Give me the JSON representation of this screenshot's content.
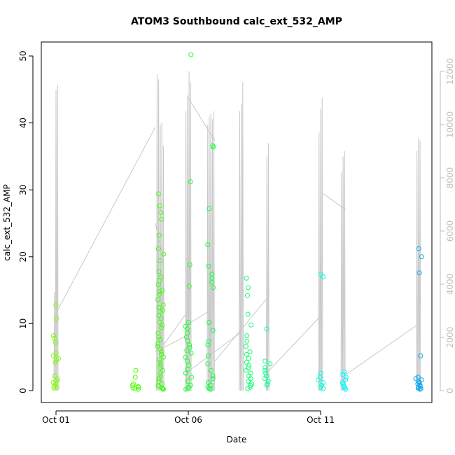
{
  "chart_data": {
    "type": "scatter",
    "title": "ATOM3 Southbound calc_ext_532_AMP",
    "xlabel": "Date",
    "ylabel": "calc_ext_532_AMP",
    "x_ticks": [
      "Oct 01",
      "Oct 06",
      "Oct 11"
    ],
    "x_range_days": [
      0,
      13.8
    ],
    "x_tick_days": [
      0,
      5,
      10
    ],
    "ylim": [
      0,
      50
    ],
    "y_ticks": [
      0,
      10,
      20,
      30,
      40,
      50
    ],
    "y2lim": [
      0,
      12000
    ],
    "y2_ticks": [
      0,
      2000,
      4000,
      6000,
      8000,
      10000,
      12000
    ],
    "grid": false,
    "legend": "none",
    "colors": {
      "secondary_line": "#c8c8c8",
      "axis": "#000000",
      "axis_right": "#bdbdbd"
    },
    "clusters": [
      {
        "day": 0.0,
        "color": "#7cfc00",
        "points": [
          12.8,
          10.8,
          8.2,
          7.8,
          7.2,
          5.6,
          5.2,
          4.8,
          4.6,
          4.2,
          2.2,
          1.8,
          1.5,
          1.2,
          1.0,
          0.7,
          0.5,
          0.4
        ]
      },
      {
        "day": 3.0,
        "color": "#4cff00",
        "points": [
          3.0,
          2.0,
          1.0,
          0.8,
          0.6,
          0.5,
          0.4,
          0.3,
          0.2
        ]
      },
      {
        "day": 3.95,
        "color": "#40ff10",
        "points": [
          29.4,
          27.6,
          26.6,
          25.6,
          23.2,
          21.2,
          20.4,
          19.4,
          17.8,
          17.0,
          16.4,
          15.8,
          15.0,
          14.8,
          14.4,
          13.6,
          12.8,
          12.4,
          12.0,
          11.8,
          11.2,
          10.8,
          10.2,
          9.8,
          9.4,
          8.6,
          8.0,
          7.6,
          7.0,
          6.6,
          6.2,
          5.8,
          5.4,
          5.0,
          4.6,
          4.2,
          3.8,
          3.4,
          3.0,
          2.6,
          2.2,
          1.8,
          1.4,
          1.0,
          0.8,
          0.6,
          0.4,
          0.3,
          0.2
        ]
      },
      {
        "day": 5.0,
        "color": "#20ff30",
        "points": [
          50.2,
          31.2,
          18.8,
          15.6,
          10.2,
          9.6,
          9.2,
          8.6,
          8.0,
          7.4,
          6.8,
          6.4,
          6.0,
          5.6,
          5.0,
          4.4,
          3.8,
          3.2,
          2.6,
          2.0,
          1.4,
          0.8,
          0.5,
          0.3,
          0.2
        ]
      },
      {
        "day": 5.85,
        "color": "#10ff40",
        "points": [
          36.6,
          36.4,
          27.2,
          21.8,
          18.6,
          17.4,
          16.8,
          16.2,
          15.4,
          10.2,
          9.0,
          7.4,
          6.8,
          5.2,
          4.0,
          3.0,
          2.2,
          1.8,
          1.2,
          0.8,
          0.5,
          0.3,
          0.2
        ]
      },
      {
        "day": 7.3,
        "color": "#10ff70",
        "points": [
          16.8,
          15.4,
          14.2,
          11.4,
          9.8,
          8.2,
          7.4,
          6.6,
          5.8,
          5.4,
          4.8,
          4.2,
          3.8,
          3.4,
          3.0,
          2.6,
          2.2,
          1.8,
          1.4,
          1.0,
          0.8,
          0.5,
          0.3
        ]
      },
      {
        "day": 8.0,
        "color": "#10ff90",
        "points": [
          9.2,
          4.4,
          4.0,
          3.4,
          3.0,
          2.6,
          2.2,
          1.8,
          1.4,
          1.0,
          0.8
        ]
      },
      {
        "day": 10.0,
        "color": "#00ffe0",
        "points": [
          17.4,
          17.0,
          2.6,
          2.0,
          1.6,
          1.2,
          0.8,
          0.5,
          0.3
        ]
      },
      {
        "day": 10.85,
        "color": "#00f8ff",
        "points": [
          2.8,
          2.4,
          2.0,
          1.6,
          1.2,
          0.9,
          0.6,
          0.4,
          0.2
        ]
      },
      {
        "day": 13.7,
        "color": "#0aa8f0",
        "points": [
          21.2,
          20.0,
          17.6,
          5.2,
          2.0,
          1.8,
          1.6,
          1.4,
          1.2,
          1.0,
          0.8,
          0.6,
          0.5,
          0.4,
          0.3,
          0.2
        ]
      }
    ],
    "secondary_series": {
      "name": "",
      "axis": "right",
      "spike_bursts": [
        {
          "day": 0.0,
          "peaks": [
            3700,
            11300,
            11500
          ]
        },
        {
          "day": 3.85,
          "peaks": [
            11900,
            11700
          ]
        },
        {
          "day": 4.0,
          "peaks": [
            10000,
            10100,
            9200
          ]
        },
        {
          "day": 5.0,
          "peaks": [
            10500,
            11100,
            12000,
            11600
          ]
        },
        {
          "day": 5.85,
          "peaks": [
            10000,
            10300,
            10400,
            10200,
            10500
          ]
        },
        {
          "day": 7.0,
          "peaks": [
            10500,
            10800,
            11600
          ]
        },
        {
          "day": 8.0,
          "peaks": [
            8800,
            9300
          ]
        },
        {
          "day": 10.0,
          "peaks": [
            9700,
            10600,
            11000
          ]
        },
        {
          "day": 10.85,
          "peaks": [
            8200,
            8800,
            9000
          ]
        },
        {
          "day": 13.7,
          "peaks": [
            9000,
            9500,
            9400
          ]
        }
      ],
      "connectors": [
        [
          [
            0.05,
            3000
          ],
          [
            3.75,
            9900
          ]
        ],
        [
          [
            3.75,
            6300
          ],
          [
            4.05,
            5000
          ]
        ],
        [
          [
            3.75,
            1450
          ],
          [
            5.0,
            2100
          ]
        ],
        [
          [
            4.05,
            1700
          ],
          [
            5.0,
            3000
          ]
        ],
        [
          [
            5.0,
            11000
          ],
          [
            6.0,
            9400
          ]
        ],
        [
          [
            5.1,
            800
          ],
          [
            7.0,
            2200
          ]
        ],
        [
          [
            5.0,
            2500
          ],
          [
            5.8,
            3000
          ]
        ],
        [
          [
            6.0,
            1100
          ],
          [
            8.0,
            3500
          ]
        ],
        [
          [
            8.0,
            700
          ],
          [
            10.0,
            2800
          ]
        ],
        [
          [
            10.1,
            7400
          ],
          [
            10.95,
            6800
          ]
        ],
        [
          [
            10.95,
            600
          ],
          [
            13.7,
            2500
          ]
        ]
      ]
    }
  }
}
